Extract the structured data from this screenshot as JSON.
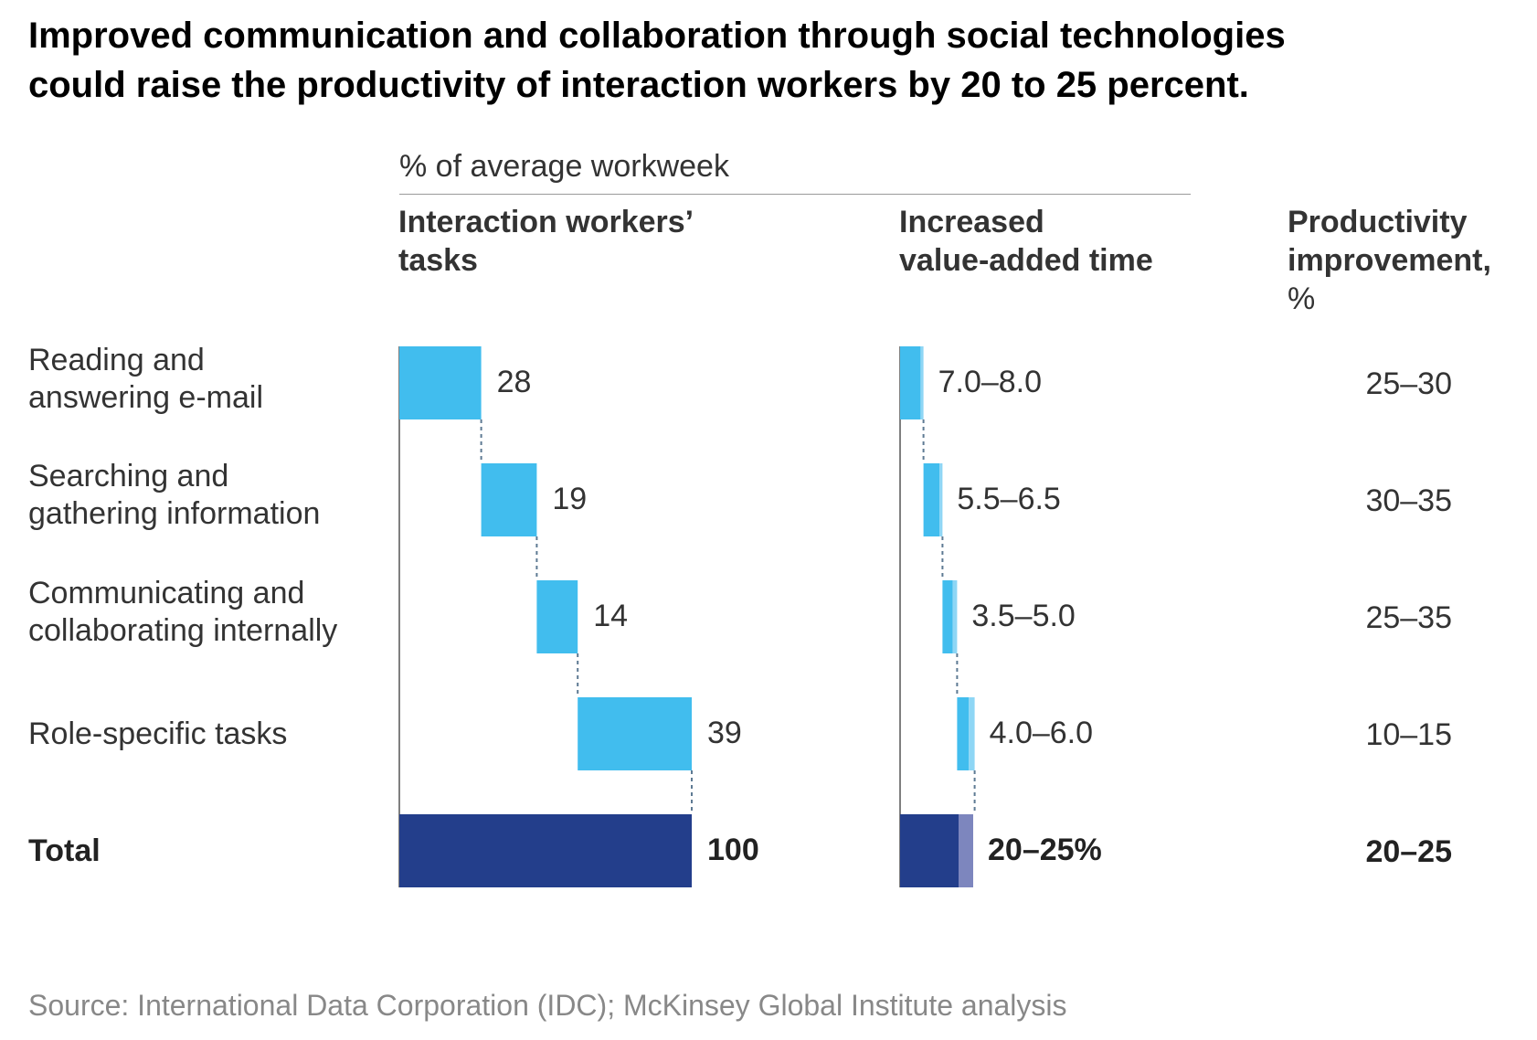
{
  "title": {
    "line1": "Improved communication and collaboration through social technologies",
    "line2": "could raise the productivity of interaction workers by 20 to 25 percent."
  },
  "unit_label": "% of average workweek",
  "headers": {
    "tasks": {
      "line1": "Interaction workers’",
      "line2": "tasks"
    },
    "value_added": {
      "line1": "Increased",
      "line2": "value-added time"
    },
    "productivity": {
      "line1": "Productivity",
      "line2": "improvement,",
      "line3": "%"
    }
  },
  "rows": [
    {
      "label_lines": [
        "Reading and",
        "answering e-mail"
      ],
      "productivity": "25–30"
    },
    {
      "label_lines": [
        "Searching and",
        "gathering information"
      ],
      "productivity": "30–35"
    },
    {
      "label_lines": [
        "Communicating and",
        "collaborating internally"
      ],
      "productivity": "25–35"
    },
    {
      "label_lines": [
        "Role-specific tasks"
      ],
      "productivity": "10–15"
    }
  ],
  "total": {
    "label": "Total",
    "productivity": "20–25"
  },
  "source": "Source: International Data Corporation (IDC); McKinsey Global Institute analysis",
  "colors": {
    "bar": "#41BDEE",
    "bar_light": "#8ED6F5",
    "total": "#233E8B",
    "total_light": "#7D86BE",
    "connector": "#5E7A93",
    "axis": "#555555"
  },
  "chart_data": [
    {
      "type": "bar",
      "subtype": "waterfall",
      "title": "Interaction workers’ tasks",
      "unit": "% of average workweek",
      "categories": [
        "Reading and answering e-mail",
        "Searching and gathering information",
        "Communicating and collaborating internally",
        "Role-specific tasks",
        "Total"
      ],
      "values": [
        28,
        19,
        14,
        39,
        100
      ],
      "value_labels": [
        "28",
        "19",
        "14",
        "39",
        "100"
      ],
      "xlim": [
        0,
        100
      ]
    },
    {
      "type": "bar",
      "subtype": "waterfall-range",
      "title": "Increased value-added time",
      "unit": "% of average workweek",
      "categories": [
        "Reading and answering e-mail",
        "Searching and gathering information",
        "Communicating and collaborating internally",
        "Role-specific tasks",
        "Total"
      ],
      "low": [
        7.0,
        5.5,
        3.5,
        4.0,
        20
      ],
      "high": [
        8.0,
        6.5,
        5.0,
        6.0,
        25
      ],
      "value_labels": [
        "7.0–8.0",
        "5.5–6.5",
        "3.5–5.0",
        "4.0–6.0",
        "20–25%"
      ],
      "xlim": [
        0,
        100
      ]
    }
  ]
}
